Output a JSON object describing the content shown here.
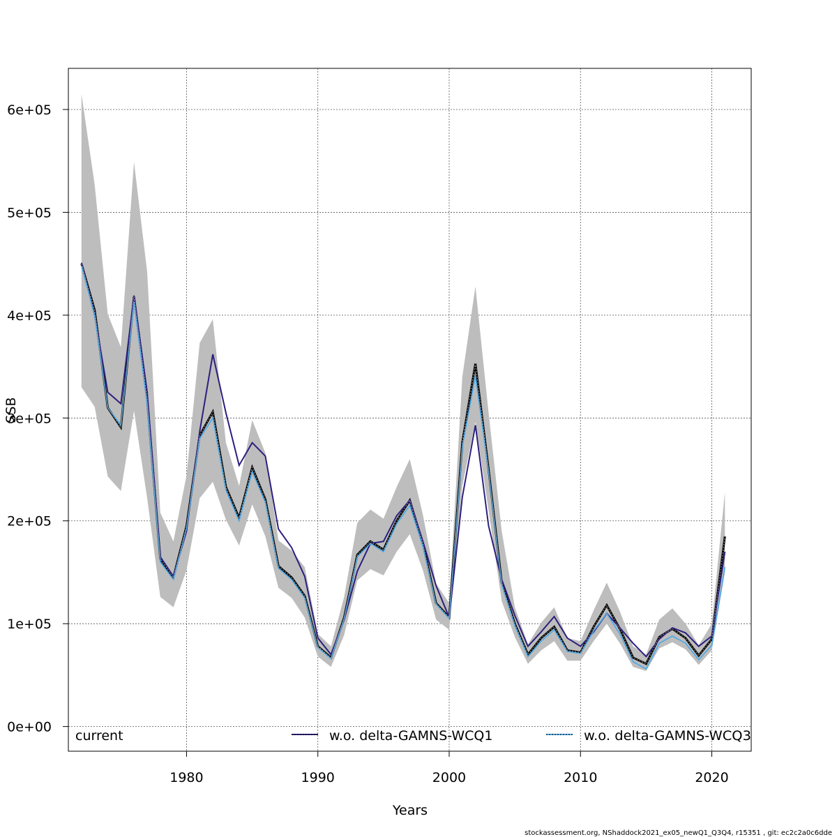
{
  "chart_data": {
    "type": "line",
    "ylabel": "SSB",
    "xlabel": "Years",
    "xlim": [
      1971,
      2023
    ],
    "ylim": [
      -24000,
      640000
    ],
    "x_ticks": [
      1980,
      1990,
      2000,
      2010,
      2020
    ],
    "x_tick_labels": [
      "1980",
      "1990",
      "2000",
      "2010",
      "2020"
    ],
    "y_ticks": [
      0,
      100000,
      200000,
      300000,
      400000,
      500000,
      600000
    ],
    "y_tick_labels": [
      "0e+00",
      "1e+05",
      "2e+05",
      "3e+05",
      "4e+05",
      "5e+05",
      "6e+05"
    ],
    "grid": true,
    "footer": "stockassessment.org, NShaddock2021_ex05_newQ1_Q3Q4, r15351 , git: ec2c2a0c6dde",
    "years": [
      1972,
      1973,
      1974,
      1975,
      1976,
      1977,
      1978,
      1979,
      1980,
      1981,
      1982,
      1983,
      1984,
      1985,
      1986,
      1987,
      1988,
      1989,
      1990,
      1991,
      1992,
      1993,
      1994,
      1995,
      1996,
      1997,
      1998,
      1999,
      2000,
      2001,
      2002,
      2003,
      2004,
      2005,
      2006,
      2007,
      2008,
      2009,
      2010,
      2011,
      2012,
      2013,
      2014,
      2015,
      2016,
      2017,
      2018,
      2019,
      2020,
      2021
    ],
    "series": [
      {
        "name": "current",
        "color": "#000000",
        "line_style": "solid",
        "values": [
          450000,
          405000,
          310000,
          291000,
          418000,
          318000,
          163000,
          145000,
          195000,
          283000,
          306000,
          233000,
          203000,
          252000,
          221000,
          156000,
          145000,
          127000,
          78000,
          67000,
          106000,
          167000,
          180000,
          172000,
          200000,
          220000,
          178000,
          120000,
          106000,
          276000,
          353000,
          250000,
          140000,
          100000,
          70000,
          86000,
          97000,
          74000,
          72000,
          97000,
          118000,
          95000,
          67000,
          61000,
          87000,
          95000,
          86000,
          69000,
          85000,
          185000
        ],
        "ci_lower": [
          330000,
          311000,
          243000,
          229000,
          307000,
          222000,
          126000,
          116000,
          152000,
          222000,
          238000,
          201000,
          176000,
          216000,
          185000,
          135000,
          125000,
          106000,
          68000,
          58000,
          89000,
          142000,
          153000,
          147000,
          170000,
          187000,
          152000,
          104000,
          94000,
          234000,
          296000,
          210000,
          122000,
          87000,
          61000,
          74000,
          83000,
          64000,
          64000,
          83000,
          100000,
          81000,
          58000,
          54000,
          76000,
          82000,
          75000,
          60000,
          74000,
          150000
        ],
        "ci_upper": [
          615000,
          527000,
          401000,
          369000,
          549000,
          442000,
          208000,
          180000,
          244000,
          373000,
          396000,
          276000,
          234000,
          298000,
          266000,
          181000,
          171000,
          155000,
          90000,
          78000,
          126000,
          198000,
          211000,
          202000,
          233000,
          260000,
          206000,
          139000,
          120000,
          340000,
          428000,
          305000,
          190000,
          116000,
          80000,
          101000,
          116000,
          86000,
          83000,
          113000,
          140000,
          112000,
          78000,
          70000,
          104000,
          115000,
          100000,
          79000,
          100000,
          228000
        ]
      },
      {
        "name": "w.o. delta-GAMNS-WCQ1",
        "color": "#2c1f7e",
        "line_style": "solid",
        "values": [
          451000,
          400000,
          325000,
          314000,
          419000,
          325000,
          165000,
          146000,
          190000,
          287000,
          362000,
          305000,
          254000,
          276000,
          263000,
          192000,
          174000,
          146000,
          86000,
          70000,
          104000,
          151000,
          178000,
          180000,
          205000,
          220000,
          180000,
          137000,
          106000,
          223000,
          293000,
          195000,
          143000,
          108000,
          78000,
          92000,
          107000,
          86000,
          78000,
          92000,
          110000,
          96000,
          81000,
          68000,
          85000,
          96000,
          91000,
          78000,
          88000,
          170000
        ]
      },
      {
        "name": "w.o. delta-GAMNS-WCQ3",
        "color": "#4aa8e8",
        "line_style": "dotted",
        "values": [
          448000,
          400000,
          310000,
          293000,
          413000,
          313000,
          160000,
          143000,
          193000,
          280000,
          300000,
          230000,
          200000,
          248000,
          218000,
          154000,
          143000,
          125000,
          77000,
          66000,
          105000,
          165000,
          178000,
          170000,
          197000,
          215000,
          175000,
          119000,
          105000,
          272000,
          341000,
          248000,
          138000,
          98000,
          68000,
          83000,
          94000,
          73000,
          71000,
          93000,
          110000,
          90000,
          63000,
          56000,
          81000,
          88000,
          81000,
          65000,
          79000,
          155000
        ]
      }
    ]
  }
}
